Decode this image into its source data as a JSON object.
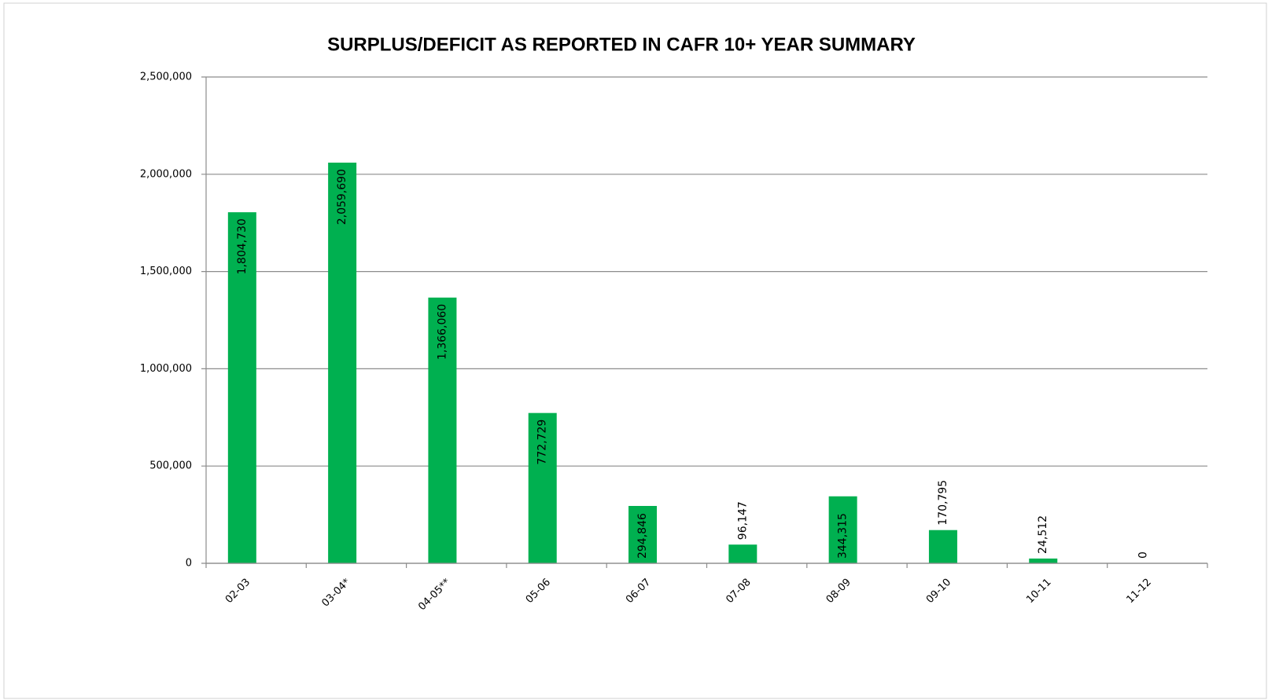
{
  "chart_data": {
    "type": "bar",
    "title": "SURPLUS/DEFICIT AS REPORTED IN CAFR 10+ YEAR SUMMARY",
    "categories": [
      "02-03",
      "03-04*",
      "04-05**",
      "05-06",
      "06-07",
      "07-08",
      "08-09",
      "09-10",
      "10-11",
      "11-12"
    ],
    "values": [
      1804730,
      2059690,
      1366060,
      772729,
      294846,
      96147,
      344315,
      170795,
      24512,
      0
    ],
    "value_labels": [
      "1,804,730",
      "2,059,690",
      "1,366,060",
      "772,729",
      "294,846",
      "96,147",
      "344,315",
      "170,795",
      "24,512",
      "0"
    ],
    "color": "#00b050",
    "ylim": [
      0,
      2500000
    ],
    "yticks": [
      0,
      {
        "value": 500000,
        "label": "500,000"
      },
      {
        "value": 1000000,
        "label": "1,000,000"
      },
      {
        "value": 1500000,
        "label": "1,500,000"
      },
      {
        "value": 2000000,
        "label": "2,000,000"
      },
      {
        "value": 2500000,
        "label": "2,500,000"
      }
    ],
    "grid": true
  }
}
